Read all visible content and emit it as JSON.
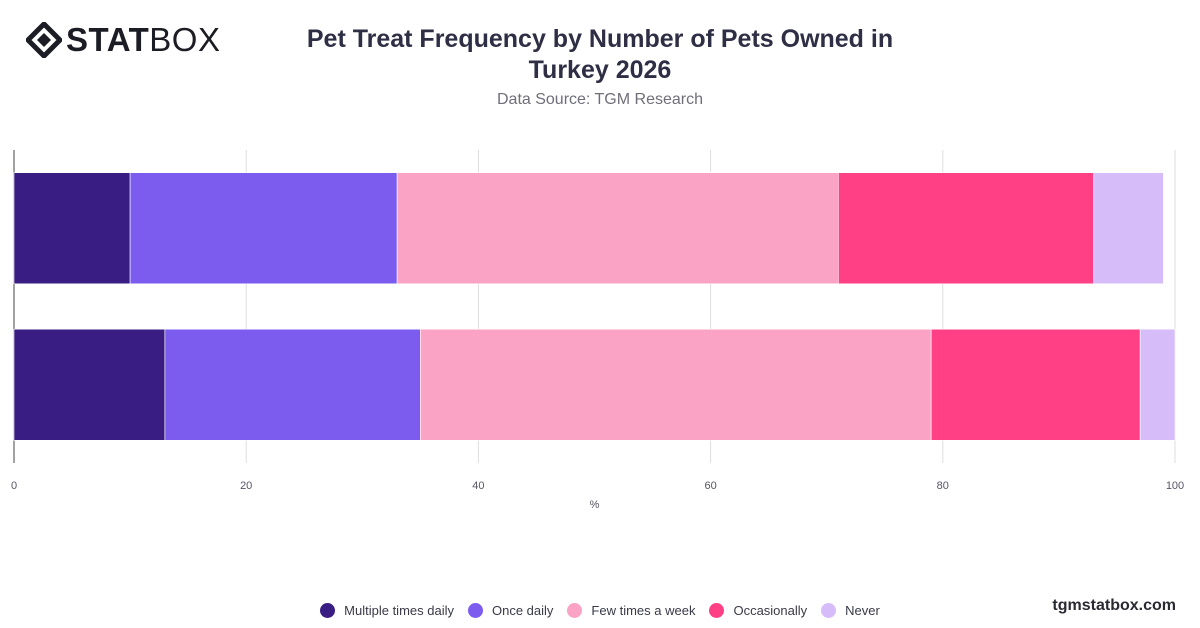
{
  "brand": {
    "logo_bold": "STAT",
    "logo_light": "BOX",
    "watermark": "tgmstatbox.com"
  },
  "chart_data": {
    "type": "bar",
    "orientation": "horizontal",
    "stacked": true,
    "title": "Pet Treat Frequency by Number of Pets Owned in Turkey 2026",
    "subtitle": "Data Source: TGM Research",
    "xlabel": "%",
    "ylabel": "",
    "xlim": [
      0,
      100
    ],
    "x_ticks": [
      "0",
      "20",
      "40",
      "60",
      "80",
      "100"
    ],
    "x_tick_values": [
      0,
      20,
      40,
      60,
      80,
      100
    ],
    "grid": true,
    "legend_position": "bottom",
    "categories": [
      "",
      ""
    ],
    "series": [
      {
        "name": "Multiple times daily",
        "color": "#3a1d82",
        "values": [
          10,
          13
        ]
      },
      {
        "name": "Once daily",
        "color": "#7b5cef",
        "values": [
          23,
          22
        ]
      },
      {
        "name": "Few times a week",
        "color": "#fba3c4",
        "values": [
          38,
          44
        ]
      },
      {
        "name": "Occasionally",
        "color": "#ff4084",
        "values": [
          22,
          18
        ]
      },
      {
        "name": "Never",
        "color": "#d6bdfa",
        "values": [
          6,
          3
        ]
      }
    ]
  }
}
